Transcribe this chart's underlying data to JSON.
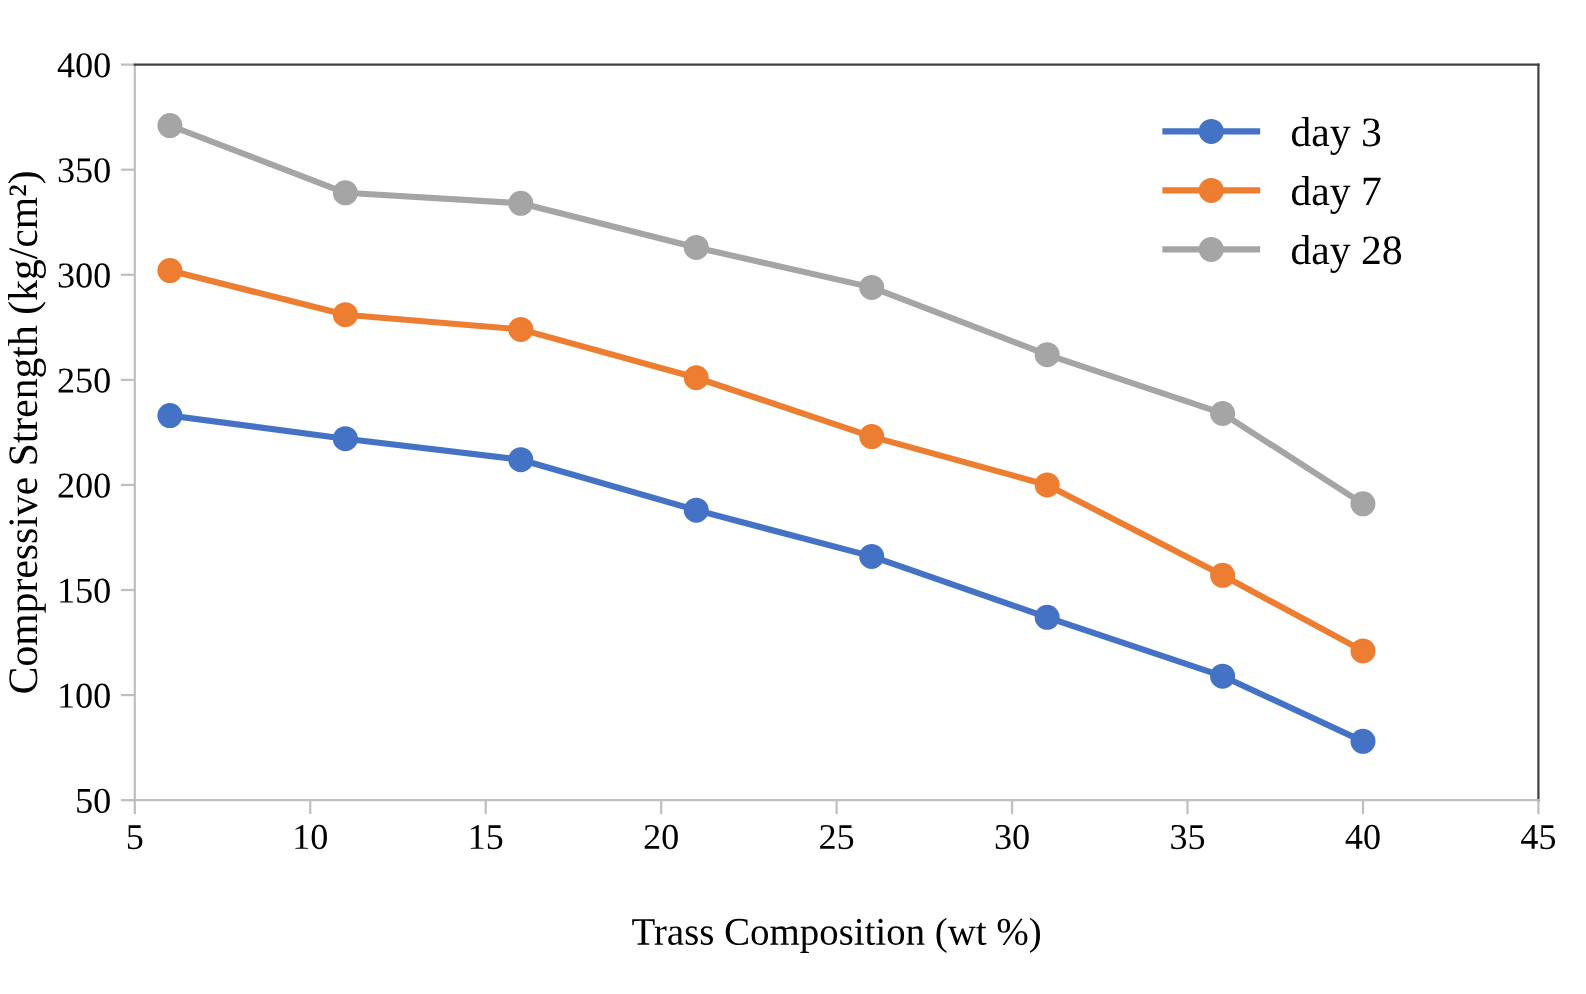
{
  "chart_data": {
    "type": "line",
    "xlabel": "Trass Composition (wt %)",
    "ylabel": "Compressive Strength (kg/cm²)",
    "x": [
      6,
      11,
      16,
      21,
      26,
      31,
      36,
      40
    ],
    "series": [
      {
        "name": "day 3",
        "color": "#4472c4",
        "values": [
          233,
          222,
          212,
          188,
          166,
          137,
          109,
          78
        ]
      },
      {
        "name": "day 7",
        "color": "#ed7d31",
        "values": [
          302,
          281,
          274,
          251,
          223,
          200,
          157,
          121
        ]
      },
      {
        "name": "day 28",
        "color": "#a5a5a5",
        "values": [
          371,
          339,
          334,
          313,
          294,
          262,
          234,
          191
        ]
      }
    ],
    "xlim": [
      5,
      45
    ],
    "xticks": [
      5,
      10,
      15,
      20,
      25,
      30,
      35,
      40,
      45
    ],
    "ylim": [
      50,
      400
    ],
    "yticks": [
      50,
      100,
      150,
      200,
      250,
      300,
      350,
      400
    ],
    "grid": false,
    "legend": "top right",
    "marker": "circle",
    "line_style": "solid"
  }
}
